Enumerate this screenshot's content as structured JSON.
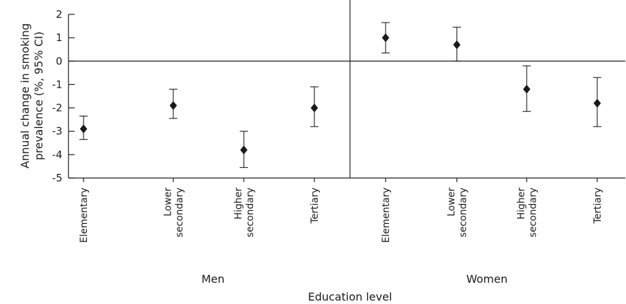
{
  "chart_data": {
    "type": "scatter",
    "title": "",
    "xlabel": "Education level",
    "ylabel": [
      "Annual change in smoking",
      "prevalence (%, 95% CI)"
    ],
    "ylim": [
      -5,
      2
    ],
    "yticks": [
      "2",
      "1",
      "0",
      "-1",
      "-2",
      "-3",
      "-4",
      "-5"
    ],
    "grid": false,
    "legend": "none",
    "marker_color": "#1a1a1a",
    "groups": [
      {
        "name": "Men",
        "points": [
          {
            "category": [
              "Elementary"
            ],
            "estimate": -2.9,
            "ci_low": -3.35,
            "ci_high": -2.35
          },
          {
            "category": [
              "Lower",
              "secondary"
            ],
            "estimate": -1.9,
            "ci_low": -2.45,
            "ci_high": -1.2
          },
          {
            "category": [
              "Higher",
              "secondary"
            ],
            "estimate": -3.8,
            "ci_low": -4.55,
            "ci_high": -3.0
          },
          {
            "category": [
              "Tertiary"
            ],
            "estimate": -2.0,
            "ci_low": -2.8,
            "ci_high": -1.1
          }
        ]
      },
      {
        "name": "Women",
        "points": [
          {
            "category": [
              "Elementary"
            ],
            "estimate": 1.0,
            "ci_low": 0.35,
            "ci_high": 1.65
          },
          {
            "category": [
              "Lower",
              "secondary"
            ],
            "estimate": 0.7,
            "ci_low": 0.0,
            "ci_high": 1.45
          },
          {
            "category": [
              "Higher",
              "secondary"
            ],
            "estimate": -1.2,
            "ci_low": -2.15,
            "ci_high": -0.2
          },
          {
            "category": [
              "Tertiary"
            ],
            "estimate": -1.8,
            "ci_low": -2.8,
            "ci_high": -0.7
          }
        ]
      }
    ]
  }
}
